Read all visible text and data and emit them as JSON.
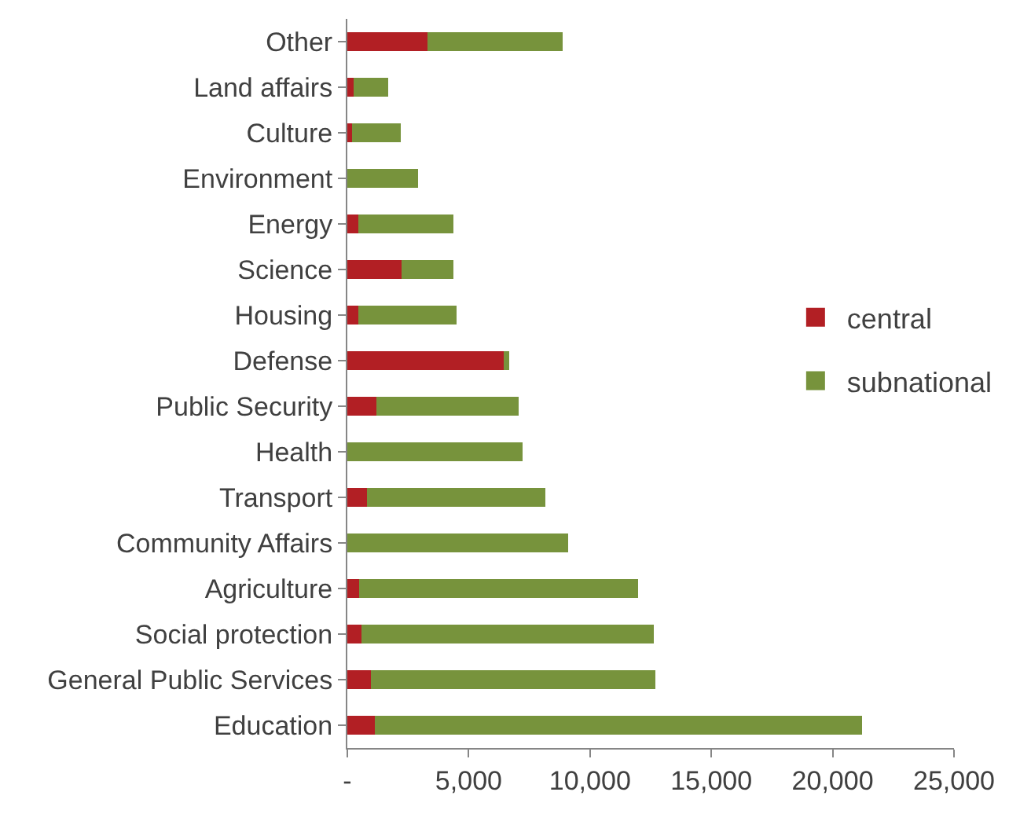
{
  "chart_data": {
    "type": "bar",
    "orientation": "horizontal",
    "stacked": true,
    "categories": [
      "Other",
      "Land affairs",
      "Culture",
      "Environment",
      "Energy",
      "Science",
      "Housing",
      "Defense",
      "Public Security",
      "Health",
      "Transport",
      "Community Affairs",
      "Agriculture",
      "Social protection",
      "General Public Services",
      "Education"
    ],
    "series": [
      {
        "name": "central",
        "color": "#b21f24",
        "values": [
          3300,
          270,
          210,
          0,
          440,
          2230,
          440,
          6450,
          1200,
          0,
          820,
          0,
          500,
          590,
          970,
          1120
        ]
      },
      {
        "name": "subnational",
        "color": "#77933c",
        "values": [
          5570,
          1400,
          2000,
          2900,
          3940,
          2150,
          4050,
          220,
          5850,
          7220,
          7330,
          9100,
          11490,
          12030,
          11730,
          20100
        ]
      }
    ],
    "xlim": [
      0,
      25000
    ],
    "xticks": [
      {
        "value": 0,
        "label": "-"
      },
      {
        "value": 5000,
        "label": "5,000"
      },
      {
        "value": 10000,
        "label": "10,000"
      },
      {
        "value": 15000,
        "label": "15,000"
      },
      {
        "value": 20000,
        "label": "20,000"
      },
      {
        "value": 25000,
        "label": "25,000"
      }
    ],
    "grid": false,
    "legend": "right"
  }
}
